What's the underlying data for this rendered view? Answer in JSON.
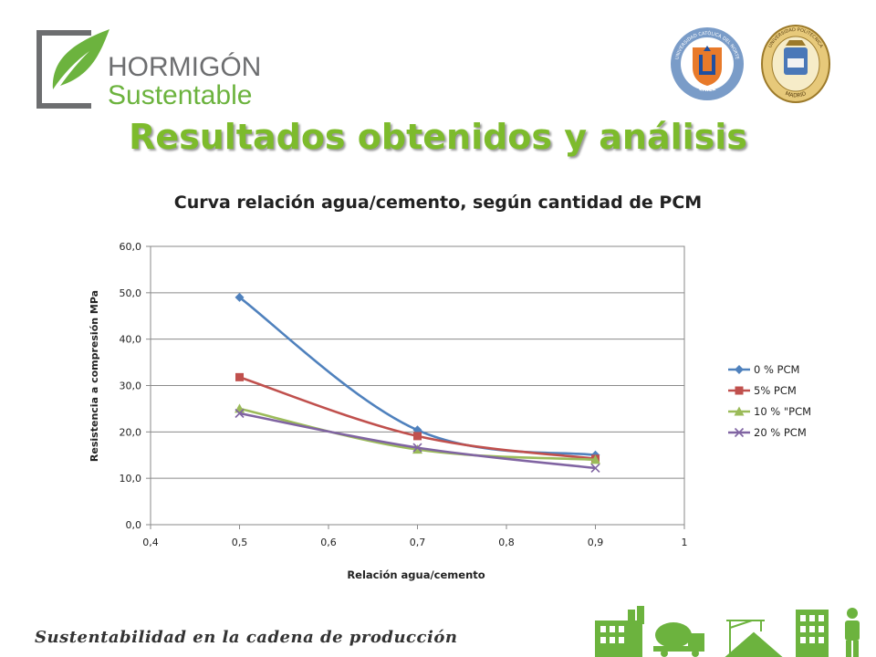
{
  "slide": {
    "title": "Resultados obtenidos y análisis",
    "footer": "Sustentabilidad en la cadena de producción"
  },
  "logo": {
    "line1": "HORMIGÓN",
    "line2": "Sustentable"
  },
  "seals": {
    "left": {
      "top_text": "UNIVERSIDAD CATÓLICA DEL NORTE",
      "bottom_text": "CHILE"
    },
    "right": {
      "top_text": "UNIVERSIDAD POLITÉCNICA",
      "bottom_text": "MADRID"
    }
  },
  "colors": {
    "title_green": "#7dbb2c",
    "logo_gray": "#6d6e70",
    "leaf_green": "#6cb33e",
    "icon_green": "#6cb33e"
  },
  "chart_data": {
    "type": "line",
    "title": "Curva relación agua/cemento, según cantidad de PCM",
    "xlabel": "Relación agua/cemento",
    "ylabel": "Resistencia a compresión MPa",
    "xlim": [
      0.4,
      1
    ],
    "ylim": [
      0,
      60
    ],
    "x_ticks": [
      "0,4",
      "0,5",
      "0,6",
      "0,7",
      "0,8",
      "0,9",
      "1"
    ],
    "x_tick_values": [
      0.4,
      0.5,
      0.6,
      0.7,
      0.8,
      0.9,
      1.0
    ],
    "y_ticks": [
      "0,0",
      "10,0",
      "20,0",
      "30,0",
      "40,0",
      "50,0",
      "60,0"
    ],
    "y_tick_values": [
      0,
      10,
      20,
      30,
      40,
      50,
      60
    ],
    "grid": "horizontal",
    "legend_position": "right",
    "series": [
      {
        "name": "0 % PCM",
        "x": [
          0.5,
          0.7,
          0.9
        ],
        "y": [
          49.0,
          20.4,
          15.0
        ],
        "color": "#4f81bd",
        "marker": "diamond"
      },
      {
        "name": "5% PCM",
        "x": [
          0.5,
          0.7,
          0.9
        ],
        "y": [
          31.8,
          19.1,
          14.2
        ],
        "color": "#c0504d",
        "marker": "square"
      },
      {
        "name": "10 % \"PCM",
        "x": [
          0.5,
          0.7,
          0.9
        ],
        "y": [
          25.0,
          16.2,
          14.0
        ],
        "color": "#9bbb59",
        "marker": "triangle"
      },
      {
        "name": "20 % PCM",
        "x": [
          0.5,
          0.7,
          0.9
        ],
        "y": [
          24.0,
          16.6,
          12.2
        ],
        "color": "#8064a2",
        "marker": "x"
      }
    ]
  }
}
